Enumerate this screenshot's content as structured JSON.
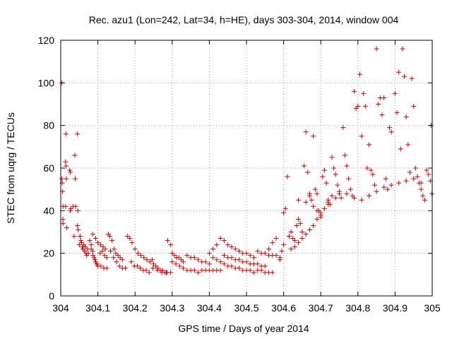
{
  "chart_data": {
    "type": "scatter",
    "title": "Rec. azu1 (Lon=242, Lat=34, h=HE), days 303-304, 2014, window 004",
    "xlabel": "GPS time / Days of year 2014",
    "ylabel": "STEC from uqrg / TECUs",
    "xlim": [
      304,
      305
    ],
    "ylim": [
      0,
      120
    ],
    "xticks": [
      304,
      304.1,
      304.2,
      304.3,
      304.4,
      304.5,
      304.6,
      304.7,
      304.8,
      304.9,
      305
    ],
    "xtick_labels": [
      "304",
      "304.1",
      "304.2",
      "304.3",
      "304.4",
      "304.5",
      "304.6",
      "304.7",
      "304.8",
      "304.9",
      "305"
    ],
    "yticks": [
      0,
      20,
      40,
      60,
      80,
      100,
      120
    ],
    "ytick_labels": [
      "0",
      "20",
      "40",
      "60",
      "80",
      "100",
      "120"
    ],
    "grid": true,
    "marker": "+",
    "color": "#cc0000",
    "series": [
      {
        "name": "STEC",
        "points": [
          [
            304.003,
            100
          ],
          [
            304.003,
            55
          ],
          [
            304.004,
            53
          ],
          [
            304.005,
            49
          ],
          [
            304.006,
            42
          ],
          [
            304.006,
            36
          ],
          [
            304.006,
            34
          ],
          [
            304.014,
            76
          ],
          [
            304.013,
            63
          ],
          [
            304.014,
            61
          ],
          [
            304.015,
            55
          ],
          [
            304.013,
            42
          ],
          [
            304.016,
            32
          ],
          [
            304.024,
            59
          ],
          [
            304.026,
            58
          ],
          [
            304.027,
            41
          ],
          [
            304.026,
            40
          ],
          [
            304.033,
            42
          ],
          [
            304.038,
            66
          ],
          [
            304.039,
            55
          ],
          [
            304.04,
            42
          ],
          [
            304.036,
            28
          ],
          [
            304.045,
            76
          ],
          [
            304.046,
            40
          ],
          [
            304.045,
            33
          ],
          [
            304.047,
            31
          ],
          [
            304.05,
            24
          ],
          [
            304.052,
            28
          ],
          [
            304.054,
            26
          ],
          [
            304.056,
            25
          ],
          [
            304.058,
            23
          ],
          [
            304.06,
            22
          ],
          [
            304.062,
            24
          ],
          [
            304.064,
            21
          ],
          [
            304.066,
            23
          ],
          [
            304.068,
            20
          ],
          [
            304.07,
            19
          ],
          [
            304.072,
            22
          ],
          [
            304.074,
            20
          ],
          [
            304.078,
            26
          ],
          [
            304.082,
            24
          ],
          [
            304.086,
            21
          ],
          [
            304.09,
            18
          ],
          [
            304.094,
            16
          ],
          [
            304.098,
            15
          ],
          [
            304.082,
            22
          ],
          [
            304.087,
            19
          ],
          [
            304.092,
            17
          ],
          [
            304.097,
            15
          ],
          [
            304.086,
            29
          ],
          [
            304.094,
            27
          ],
          [
            304.1,
            25
          ],
          [
            304.107,
            24
          ],
          [
            304.114,
            23
          ],
          [
            304.12,
            22
          ],
          [
            304.106,
            20
          ],
          [
            304.112,
            21
          ],
          [
            304.118,
            19
          ],
          [
            304.124,
            18
          ],
          [
            304.1,
            14
          ],
          [
            304.108,
            14
          ],
          [
            304.116,
            13
          ],
          [
            304.124,
            13
          ],
          [
            304.128,
            29
          ],
          [
            304.132,
            28
          ],
          [
            304.138,
            26
          ],
          [
            304.144,
            22
          ],
          [
            304.148,
            20
          ],
          [
            304.154,
            19
          ],
          [
            304.16,
            18
          ],
          [
            304.166,
            17
          ],
          [
            304.134,
            21
          ],
          [
            304.142,
            18
          ],
          [
            304.15,
            16
          ],
          [
            304.158,
            14
          ],
          [
            304.166,
            13
          ],
          [
            304.174,
            13
          ],
          [
            304.18,
            28
          ],
          [
            304.186,
            27
          ],
          [
            304.192,
            25
          ],
          [
            304.2,
            22
          ],
          [
            304.208,
            20
          ],
          [
            304.216,
            19
          ],
          [
            304.224,
            18
          ],
          [
            304.232,
            17
          ],
          [
            304.24,
            16
          ],
          [
            304.19,
            16
          ],
          [
            304.198,
            14
          ],
          [
            304.206,
            14
          ],
          [
            304.214,
            13
          ],
          [
            304.222,
            12
          ],
          [
            304.23,
            12
          ],
          [
            304.238,
            11
          ],
          [
            304.246,
            17
          ],
          [
            304.25,
            15
          ],
          [
            304.256,
            14
          ],
          [
            304.262,
            13
          ],
          [
            304.268,
            12
          ],
          [
            304.274,
            12
          ],
          [
            304.28,
            11
          ],
          [
            304.286,
            11
          ],
          [
            304.248,
            13
          ],
          [
            304.26,
            12
          ],
          [
            304.272,
            11
          ],
          [
            304.284,
            11
          ],
          [
            304.296,
            11
          ],
          [
            304.288,
            26
          ],
          [
            304.296,
            24
          ],
          [
            304.3,
            20
          ],
          [
            304.306,
            19
          ],
          [
            304.312,
            18
          ],
          [
            304.318,
            18
          ],
          [
            304.324,
            17
          ],
          [
            304.33,
            16
          ],
          [
            304.3,
            16
          ],
          [
            304.31,
            15
          ],
          [
            304.32,
            14
          ],
          [
            304.33,
            13
          ],
          [
            304.34,
            12
          ],
          [
            304.35,
            12
          ],
          [
            304.36,
            12
          ],
          [
            304.37,
            11
          ],
          [
            304.34,
            19
          ],
          [
            304.35,
            18
          ],
          [
            304.36,
            18
          ],
          [
            304.37,
            17
          ],
          [
            304.38,
            16
          ],
          [
            304.39,
            16
          ],
          [
            304.4,
            15
          ],
          [
            304.38,
            12
          ],
          [
            304.39,
            12
          ],
          [
            304.4,
            12
          ],
          [
            304.41,
            12
          ],
          [
            304.42,
            12
          ],
          [
            304.43,
            12
          ],
          [
            304.4,
            20
          ],
          [
            304.41,
            22
          ],
          [
            304.42,
            24
          ],
          [
            304.43,
            27
          ],
          [
            304.44,
            26
          ],
          [
            304.45,
            24
          ],
          [
            304.46,
            23
          ],
          [
            304.47,
            22
          ],
          [
            304.48,
            21
          ],
          [
            304.49,
            20
          ],
          [
            304.5,
            20
          ],
          [
            304.51,
            19
          ],
          [
            304.52,
            18
          ],
          [
            304.41,
            18
          ],
          [
            304.42,
            17
          ],
          [
            304.43,
            16
          ],
          [
            304.44,
            15
          ],
          [
            304.45,
            14
          ],
          [
            304.46,
            14
          ],
          [
            304.47,
            13
          ],
          [
            304.48,
            13
          ],
          [
            304.49,
            12
          ],
          [
            304.5,
            12
          ],
          [
            304.51,
            12
          ],
          [
            304.52,
            11
          ],
          [
            304.44,
            19
          ],
          [
            304.45,
            18
          ],
          [
            304.46,
            18
          ],
          [
            304.47,
            17
          ],
          [
            304.48,
            17
          ],
          [
            304.49,
            16
          ],
          [
            304.5,
            16
          ],
          [
            304.51,
            15
          ],
          [
            304.52,
            15
          ],
          [
            304.53,
            15
          ],
          [
            304.54,
            14
          ],
          [
            304.55,
            14
          ],
          [
            304.53,
            12
          ],
          [
            304.54,
            12
          ],
          [
            304.55,
            11
          ],
          [
            304.56,
            11
          ],
          [
            304.57,
            11
          ],
          [
            304.53,
            21
          ],
          [
            304.54,
            20
          ],
          [
            304.55,
            20
          ],
          [
            304.56,
            19
          ],
          [
            304.57,
            19
          ],
          [
            304.58,
            19
          ],
          [
            304.59,
            18
          ],
          [
            304.56,
            22
          ],
          [
            304.57,
            25
          ],
          [
            304.58,
            27
          ],
          [
            304.59,
            17
          ],
          [
            304.595,
            21
          ],
          [
            304.6,
            24
          ],
          [
            304.6,
            39
          ],
          [
            304.605,
            41
          ],
          [
            304.61,
            56
          ],
          [
            304.615,
            28
          ],
          [
            304.62,
            30
          ],
          [
            304.625,
            27
          ],
          [
            304.63,
            26
          ],
          [
            304.635,
            33
          ],
          [
            304.64,
            36
          ],
          [
            304.645,
            34
          ],
          [
            304.65,
            30
          ],
          [
            304.655,
            61
          ],
          [
            304.66,
            77
          ],
          [
            304.665,
            58
          ],
          [
            304.67,
            47
          ],
          [
            304.675,
            45
          ],
          [
            304.68,
            75
          ],
          [
            304.685,
            50
          ],
          [
            304.69,
            48
          ],
          [
            304.695,
            40
          ],
          [
            304.7,
            37
          ],
          [
            304.705,
            56
          ],
          [
            304.71,
            59
          ],
          [
            304.715,
            53
          ],
          [
            304.72,
            45
          ],
          [
            304.725,
            43
          ],
          [
            304.73,
            65
          ],
          [
            304.735,
            60
          ],
          [
            304.74,
            57
          ],
          [
            304.745,
            52
          ],
          [
            304.75,
            48
          ],
          [
            304.755,
            46
          ],
          [
            304.76,
            79
          ],
          [
            304.765,
            66
          ],
          [
            304.77,
            61
          ],
          [
            304.775,
            55
          ],
          [
            304.78,
            50
          ],
          [
            304.785,
            47
          ],
          [
            304.79,
            96
          ],
          [
            304.795,
            88
          ],
          [
            304.8,
            89
          ],
          [
            304.805,
            104
          ],
          [
            304.81,
            75
          ],
          [
            304.815,
            95
          ],
          [
            304.82,
            89
          ],
          [
            304.825,
            60
          ],
          [
            304.83,
            71
          ],
          [
            304.835,
            59
          ],
          [
            304.84,
            57
          ],
          [
            304.845,
            52
          ],
          [
            304.85,
            116
          ],
          [
            304.855,
            90
          ],
          [
            304.86,
            93
          ],
          [
            304.865,
            85
          ],
          [
            304.87,
            93
          ],
          [
            304.875,
            55
          ],
          [
            304.88,
            50
          ],
          [
            304.885,
            79
          ],
          [
            304.89,
            77
          ],
          [
            304.9,
            95
          ],
          [
            304.905,
            86
          ],
          [
            304.91,
            105
          ],
          [
            304.915,
            69
          ],
          [
            304.92,
            116
          ],
          [
            304.925,
            103
          ],
          [
            304.93,
            84
          ],
          [
            304.935,
            71
          ],
          [
            304.94,
            58
          ],
          [
            304.945,
            102
          ],
          [
            304.95,
            89
          ],
          [
            304.955,
            60
          ],
          [
            304.96,
            56
          ],
          [
            304.965,
            53
          ],
          [
            304.97,
            50
          ],
          [
            304.975,
            47
          ],
          [
            304.98,
            45
          ],
          [
            304.985,
            59
          ],
          [
            304.99,
            57
          ],
          [
            304.995,
            54
          ],
          [
            304.997,
            80
          ],
          [
            304.999,
            48
          ],
          [
            304.64,
            45
          ],
          [
            304.66,
            44
          ],
          [
            304.67,
            48
          ],
          [
            304.68,
            42
          ],
          [
            304.69,
            40
          ],
          [
            304.7,
            38
          ],
          [
            304.71,
            41
          ],
          [
            304.72,
            44
          ],
          [
            304.73,
            47
          ],
          [
            304.75,
            49
          ],
          [
            304.77,
            48
          ],
          [
            304.79,
            46
          ],
          [
            304.81,
            45
          ],
          [
            304.83,
            47
          ],
          [
            304.85,
            49
          ],
          [
            304.87,
            51
          ],
          [
            304.89,
            52
          ],
          [
            304.91,
            53
          ],
          [
            304.93,
            54
          ],
          [
            304.95,
            55
          ],
          [
            304.97,
            53
          ],
          [
            304.62,
            22
          ],
          [
            304.63,
            23
          ],
          [
            304.64,
            25
          ],
          [
            304.65,
            27
          ],
          [
            304.66,
            29
          ],
          [
            304.67,
            31
          ],
          [
            304.68,
            33
          ],
          [
            304.69,
            36
          ],
          [
            304.7,
            39
          ],
          [
            304.72,
            43
          ],
          [
            304.74,
            46
          ]
        ]
      }
    ]
  }
}
